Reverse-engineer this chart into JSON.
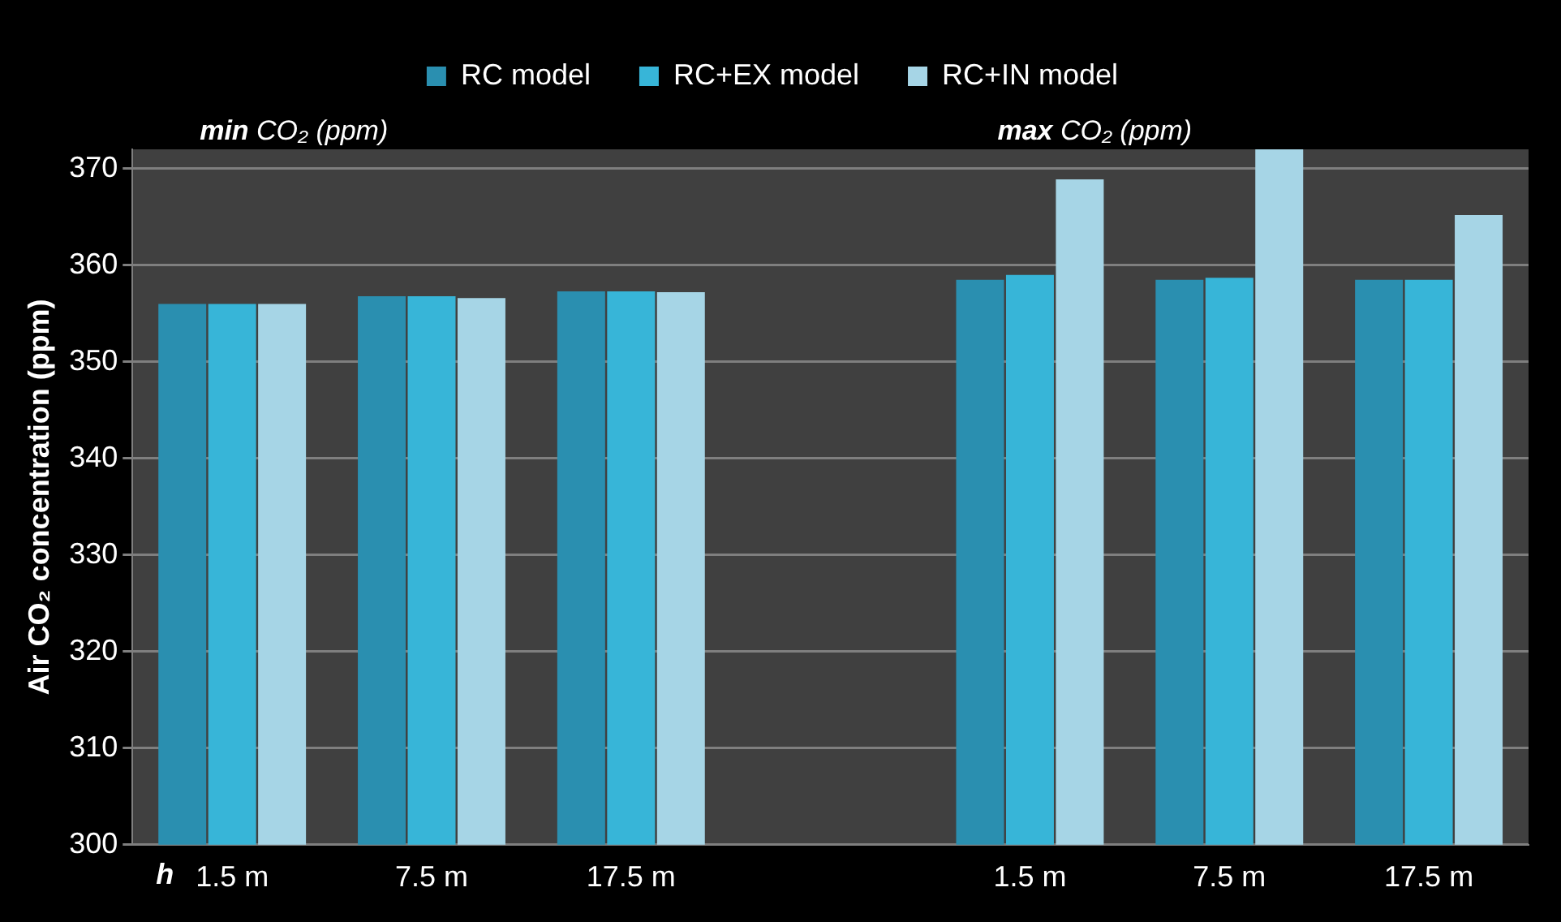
{
  "chart_data": {
    "type": "bar",
    "ylabel": "Air CO₂ concentration (ppm)",
    "categories": [
      "1.5 m",
      "7.5 m",
      "17.5 m",
      null,
      "1.5 m",
      "7.5 m",
      "17.5 m"
    ],
    "series": [
      {
        "name": "RC model",
        "color": "#2a8fb0",
        "values": [
          356.0,
          356.8,
          357.3,
          null,
          358.5,
          358.5,
          358.5
        ]
      },
      {
        "name": "RC+EX model",
        "color": "#37b5d8",
        "values": [
          356.0,
          356.8,
          357.3,
          null,
          359.0,
          358.7,
          358.5
        ]
      },
      {
        "name": "RC+IN model",
        "color": "#a6d5e6",
        "values": [
          356.0,
          356.6,
          357.2,
          null,
          368.9,
          372,
          365.2
        ]
      }
    ],
    "ylim": [
      300,
      372
    ],
    "yticks": [
      300,
      310,
      320,
      330,
      340,
      350,
      360,
      370
    ],
    "grid": "y",
    "legend": "top",
    "annotations": [
      "min CO₂ (ppm)",
      "max CO₂ (ppm)",
      "h"
    ]
  }
}
